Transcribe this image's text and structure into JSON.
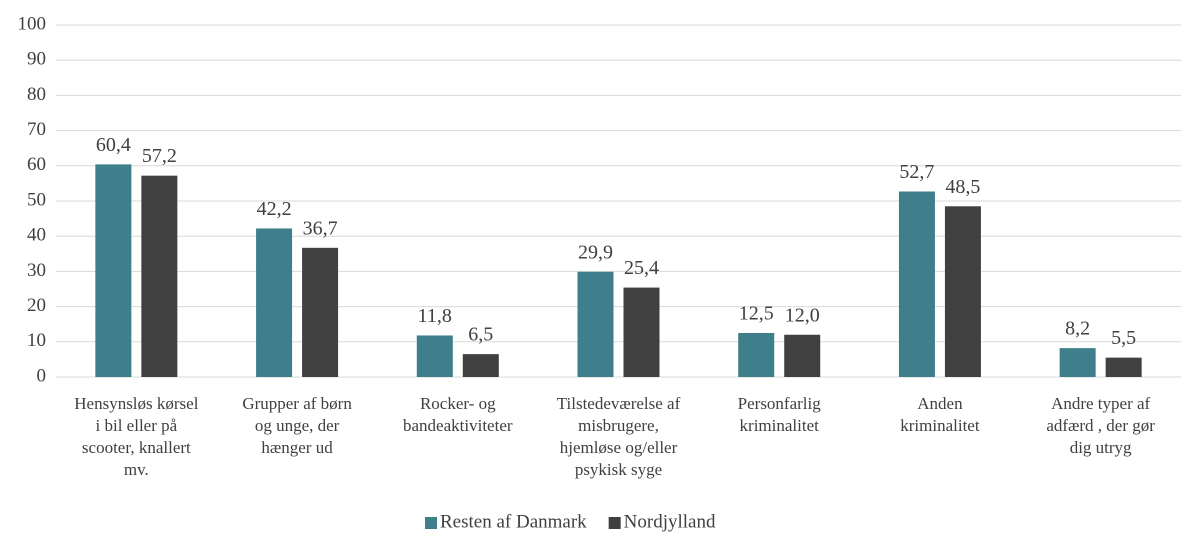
{
  "chart_data": {
    "type": "bar",
    "categories": [
      [
        "Hensynsløs kørsel",
        "i bil eller på",
        "scooter, knallert",
        "mv."
      ],
      [
        "Grupper af børn",
        "og unge, der",
        "hænger ud"
      ],
      [
        "Rocker- og",
        "bandeaktiviteter"
      ],
      [
        "Tilstedeværelse af",
        "misbrugere,",
        "hjemløse og/eller",
        "psykisk syge"
      ],
      [
        "Personfarlig",
        "kriminalitet"
      ],
      [
        "Anden",
        "kriminalitet"
      ],
      [
        "Andre typer af",
        "adfærd , der gør",
        "dig utryg"
      ]
    ],
    "series": [
      {
        "name": "Resten af Danmark",
        "color": "#3e7f8b",
        "values": [
          60.4,
          42.2,
          11.8,
          29.9,
          12.5,
          52.7,
          8.2
        ],
        "value_labels": [
          "60,4",
          "42,2",
          "11,8",
          "29,9",
          "12,5",
          "52,7",
          "8,2"
        ]
      },
      {
        "name": "Nordjylland",
        "color": "#404040",
        "values": [
          57.2,
          36.7,
          6.5,
          25.4,
          12.0,
          48.5,
          5.5
        ],
        "value_labels": [
          "57,2",
          "36,7",
          "6,5",
          "25,4",
          "12,0",
          "48,5",
          "5,5"
        ]
      }
    ],
    "ylim": [
      0,
      100
    ],
    "yticks": [
      0,
      10,
      20,
      30,
      40,
      50,
      60,
      70,
      80,
      90,
      100
    ],
    "grid": true,
    "legend": "bottom"
  }
}
